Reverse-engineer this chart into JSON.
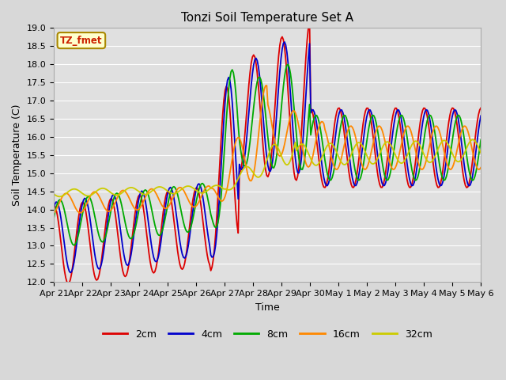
{
  "title": "Tonzi Soil Temperature Set A",
  "xlabel": "Time",
  "ylabel": "Soil Temperature (C)",
  "ylim": [
    12.0,
    19.0
  ],
  "yticks": [
    12.0,
    12.5,
    13.0,
    13.5,
    14.0,
    14.5,
    15.0,
    15.5,
    16.0,
    16.5,
    17.0,
    17.5,
    18.0,
    18.5,
    19.0
  ],
  "xtick_labels": [
    "Apr 21",
    "Apr 22",
    "Apr 23",
    "Apr 24",
    "Apr 25",
    "Apr 26",
    "Apr 27",
    "Apr 28",
    "Apr 29",
    "Apr 30",
    "May 1",
    "May 2",
    "May 3",
    "May 4",
    "May 5",
    "May 6"
  ],
  "legend_labels": [
    "2cm",
    "4cm",
    "8cm",
    "16cm",
    "32cm"
  ],
  "legend_colors": [
    "#dd0000",
    "#0000cc",
    "#00aa00",
    "#ff8800",
    "#cccc00"
  ],
  "annotation_text": "TZ_fmet",
  "annotation_color": "#cc2200",
  "annotation_bg": "#ffffcc",
  "annotation_border": "#aa8800",
  "title_fontsize": 11,
  "axis_fontsize": 9,
  "tick_fontsize": 8
}
